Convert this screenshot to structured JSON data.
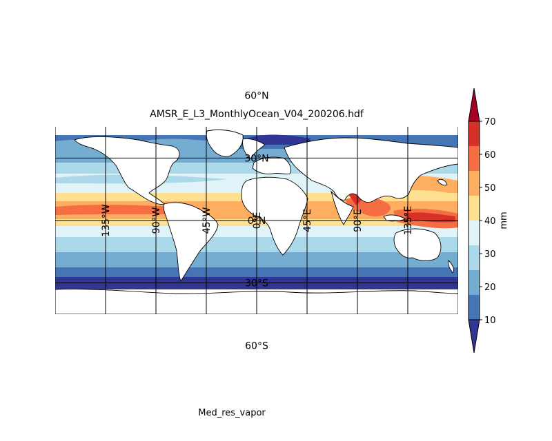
{
  "figure": {
    "title": "AMSR_E_L3_MonthlyOcean_V04_200206.hdf",
    "variable_label": "Med_res_vapor"
  },
  "map": {
    "projection": "cylindrical",
    "lon_range": [
      -180,
      180
    ],
    "lat_range": [
      -90,
      90
    ],
    "meridian_labels": [
      "135°W",
      "90°W",
      "45°W",
      "0°E",
      "45°E",
      "90°E",
      "135°E"
    ],
    "parallel_labels": [
      "60°N",
      "30°N",
      "0°N",
      "30°S",
      "60°S"
    ],
    "meridians_deg": [
      -180,
      -135,
      -90,
      -45,
      0,
      45,
      90,
      135,
      180
    ],
    "parallels_deg": [
      90,
      60,
      30,
      0,
      -30,
      -60,
      -90
    ]
  },
  "colorbar": {
    "label": "mm",
    "ticks": [
      "10",
      "20",
      "30",
      "40",
      "50",
      "60",
      "70"
    ],
    "levels": [
      10,
      20,
      30,
      40,
      50,
      60,
      70
    ],
    "colors": [
      "#313695",
      "#4575b4",
      "#74add1",
      "#abd9e9",
      "#e0f3f8",
      "#fee090",
      "#fdae61",
      "#f46d43",
      "#d73027",
      "#a50026"
    ],
    "extend": "both"
  },
  "chart_data": {
    "type": "heatmap",
    "title": "AMSR_E_L3_MonthlyOcean_V04_200206.hdf",
    "variable": "Med_res_vapor",
    "units": "mm",
    "lat_bands": [
      {
        "lat": [
          60,
          90
        ],
        "value_range": [
          10,
          20
        ]
      },
      {
        "lat": [
          45,
          60
        ],
        "value_range": [
          10,
          20
        ]
      },
      {
        "lat": [
          30,
          45
        ],
        "value_range": [
          20,
          30
        ]
      },
      {
        "lat": [
          15,
          30
        ],
        "value_range": [
          30,
          40
        ]
      },
      {
        "lat": [
          0,
          15
        ],
        "value_range": [
          40,
          60
        ]
      },
      {
        "lat": [
          -15,
          0
        ],
        "value_range": [
          30,
          50
        ]
      },
      {
        "lat": [
          -30,
          -15
        ],
        "value_range": [
          20,
          30
        ]
      },
      {
        "lat": [
          -45,
          -30
        ],
        "value_range": [
          10,
          20
        ]
      },
      {
        "lat": [
          -60,
          -45
        ],
        "value_range": [
          0,
          10
        ]
      }
    ],
    "colorbar_range": [
      10,
      70
    ]
  }
}
